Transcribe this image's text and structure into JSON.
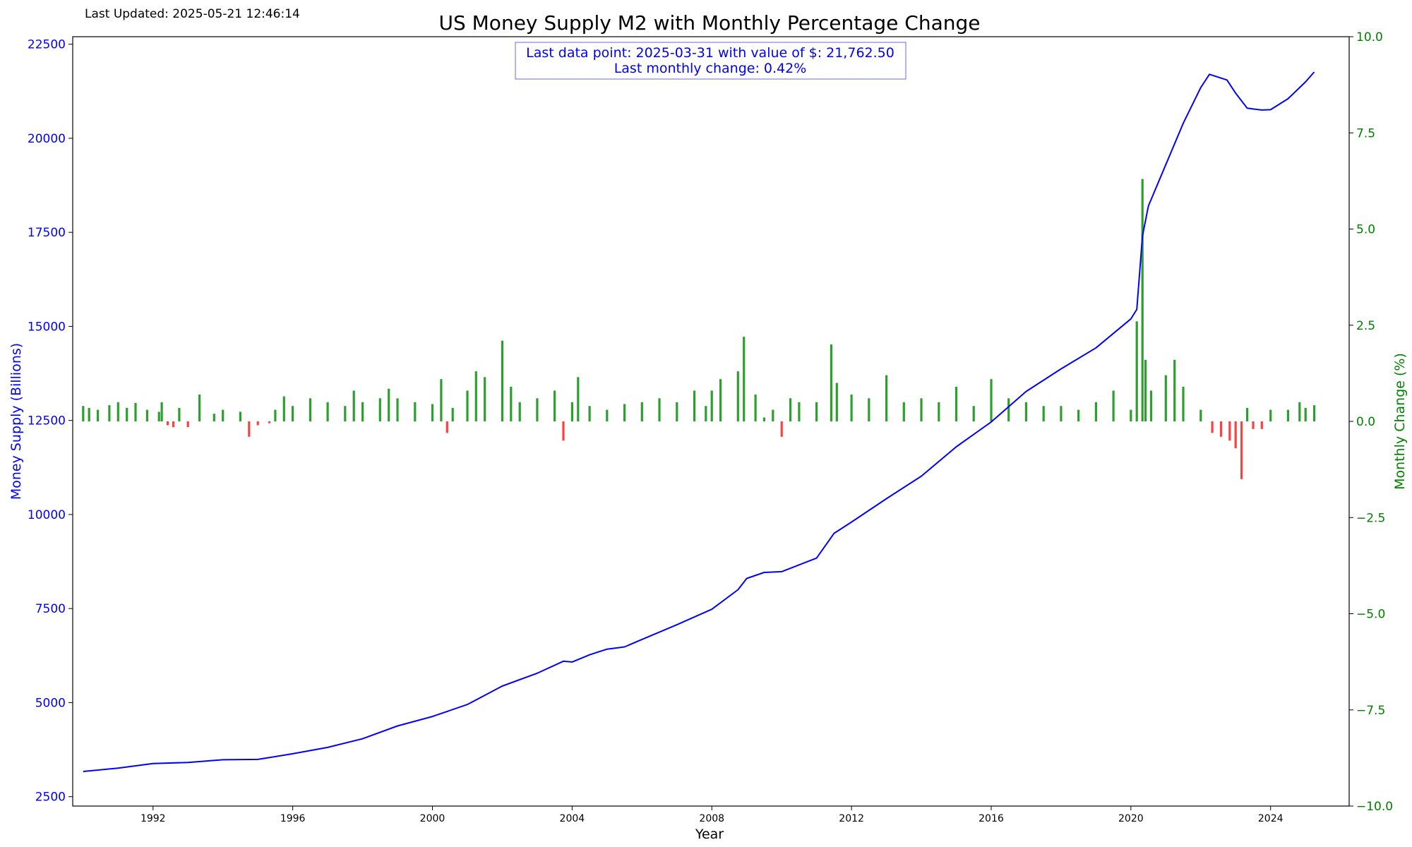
{
  "header": {
    "last_updated": "Last Updated: 2025-05-21 12:46:14"
  },
  "chart_data": {
    "type": "line",
    "title": "US Money Supply M2 with Monthly Percentage Change",
    "xlabel": "Year",
    "ylabel": "Money Supply (Billions)",
    "y2label": "Monthly Change (%)",
    "xlim": [
      1989.7,
      2026.25
    ],
    "ylim": [
      2250,
      22700
    ],
    "y2lim": [
      -10,
      10
    ],
    "xticks": [
      "1992",
      "1996",
      "2000",
      "2004",
      "2008",
      "2012",
      "2016",
      "2020",
      "2024"
    ],
    "yticks": [
      "2500",
      "5000",
      "7500",
      "10000",
      "12500",
      "15000",
      "17500",
      "20000",
      "22500"
    ],
    "y2ticks": [
      "−10.0",
      "−7.5",
      "−5.0",
      "−2.5",
      "0.0",
      "2.5",
      "5.0",
      "7.5",
      "10.0"
    ],
    "grid": false,
    "annotation": {
      "line1": "Last data point: 2025-03-31 with value of $: 21,762.50",
      "line2": "Last monthly change: 0.42%"
    },
    "colors": {
      "line": "#0000ff",
      "positive_bar": "#2ca02c",
      "negative_bar": "#ff4040",
      "right_axis": "#008000",
      "left_axis": "#0000ff"
    },
    "series": [
      {
        "name": "M2",
        "points": [
          [
            1990.0,
            3170
          ],
          [
            1991.0,
            3260
          ],
          [
            1992.0,
            3380
          ],
          [
            1993.0,
            3410
          ],
          [
            1994.0,
            3480
          ],
          [
            1995.0,
            3490
          ],
          [
            1996.0,
            3640
          ],
          [
            1997.0,
            3810
          ],
          [
            1998.0,
            4040
          ],
          [
            1999.0,
            4380
          ],
          [
            2000.0,
            4630
          ],
          [
            2001.0,
            4950
          ],
          [
            2002.0,
            5440
          ],
          [
            2003.0,
            5780
          ],
          [
            2003.75,
            6100
          ],
          [
            2004.0,
            6080
          ],
          [
            2004.5,
            6270
          ],
          [
            2005.0,
            6420
          ],
          [
            2005.5,
            6480
          ],
          [
            2006.0,
            6680
          ],
          [
            2007.0,
            7070
          ],
          [
            2008.0,
            7480
          ],
          [
            2008.75,
            8000
          ],
          [
            2009.0,
            8300
          ],
          [
            2009.5,
            8460
          ],
          [
            2010.0,
            8480
          ],
          [
            2011.0,
            8840
          ],
          [
            2011.5,
            9500
          ],
          [
            2012.0,
            9800
          ],
          [
            2013.0,
            10420
          ],
          [
            2014.0,
            11020
          ],
          [
            2015.0,
            11800
          ],
          [
            2016.0,
            12460
          ],
          [
            2017.0,
            13270
          ],
          [
            2018.0,
            13870
          ],
          [
            2019.0,
            14430
          ],
          [
            2020.0,
            15200
          ],
          [
            2020.17,
            15450
          ],
          [
            2020.33,
            17400
          ],
          [
            2020.5,
            18200
          ],
          [
            2021.0,
            19300
          ],
          [
            2021.5,
            20400
          ],
          [
            2022.0,
            21350
          ],
          [
            2022.25,
            21700
          ],
          [
            2022.75,
            21550
          ],
          [
            2023.0,
            21200
          ],
          [
            2023.33,
            20800
          ],
          [
            2023.75,
            20750
          ],
          [
            2024.0,
            20760
          ],
          [
            2024.5,
            21050
          ],
          [
            2025.0,
            21500
          ],
          [
            2025.25,
            21762.5
          ]
        ]
      },
      {
        "name": "Monthly Change",
        "axis": "right",
        "points": [
          [
            1990.0,
            0.4
          ],
          [
            1990.17,
            0.35
          ],
          [
            1990.42,
            0.3
          ],
          [
            1990.75,
            0.42
          ],
          [
            1991.0,
            0.5
          ],
          [
            1991.25,
            0.35
          ],
          [
            1991.5,
            0.48
          ],
          [
            1991.83,
            0.3
          ],
          [
            1992.17,
            0.25
          ],
          [
            1992.25,
            0.5
          ],
          [
            1992.42,
            -0.1
          ],
          [
            1992.58,
            -0.15
          ],
          [
            1992.75,
            0.35
          ],
          [
            1993.0,
            -0.15
          ],
          [
            1993.33,
            0.7
          ],
          [
            1993.75,
            0.2
          ],
          [
            1994.0,
            0.3
          ],
          [
            1994.5,
            0.25
          ],
          [
            1994.75,
            -0.4
          ],
          [
            1995.0,
            -0.1
          ],
          [
            1995.33,
            -0.05
          ],
          [
            1995.5,
            0.3
          ],
          [
            1995.75,
            0.65
          ],
          [
            1996.0,
            0.4
          ],
          [
            1996.5,
            0.6
          ],
          [
            1997.0,
            0.5
          ],
          [
            1997.5,
            0.4
          ],
          [
            1997.75,
            0.8
          ],
          [
            1998.0,
            0.5
          ],
          [
            1998.5,
            0.6
          ],
          [
            1998.75,
            0.85
          ],
          [
            1999.0,
            0.6
          ],
          [
            1999.5,
            0.5
          ],
          [
            2000.0,
            0.45
          ],
          [
            2000.25,
            1.1
          ],
          [
            2000.42,
            -0.3
          ],
          [
            2000.58,
            0.35
          ],
          [
            2001.0,
            0.8
          ],
          [
            2001.25,
            1.3
          ],
          [
            2001.5,
            1.15
          ],
          [
            2002.0,
            2.1
          ],
          [
            2002.25,
            0.9
          ],
          [
            2002.5,
            0.5
          ],
          [
            2003.0,
            0.6
          ],
          [
            2003.5,
            0.8
          ],
          [
            2003.75,
            -0.5
          ],
          [
            2004.0,
            0.5
          ],
          [
            2004.17,
            1.15
          ],
          [
            2004.5,
            0.4
          ],
          [
            2005.0,
            0.3
          ],
          [
            2005.5,
            0.45
          ],
          [
            2006.0,
            0.5
          ],
          [
            2006.5,
            0.6
          ],
          [
            2007.0,
            0.5
          ],
          [
            2007.5,
            0.8
          ],
          [
            2007.83,
            0.4
          ],
          [
            2008.0,
            0.8
          ],
          [
            2008.25,
            1.1
          ],
          [
            2008.75,
            1.3
          ],
          [
            2008.92,
            2.2
          ],
          [
            2009.25,
            0.7
          ],
          [
            2009.5,
            0.1
          ],
          [
            2009.75,
            0.3
          ],
          [
            2010.0,
            -0.4
          ],
          [
            2010.25,
            0.6
          ],
          [
            2010.5,
            0.5
          ],
          [
            2011.0,
            0.5
          ],
          [
            2011.42,
            2.0
          ],
          [
            2011.58,
            1.0
          ],
          [
            2012.0,
            0.7
          ],
          [
            2012.5,
            0.6
          ],
          [
            2013.0,
            1.2
          ],
          [
            2013.5,
            0.5
          ],
          [
            2014.0,
            0.6
          ],
          [
            2014.5,
            0.5
          ],
          [
            2015.0,
            0.9
          ],
          [
            2015.5,
            0.4
          ],
          [
            2016.0,
            1.1
          ],
          [
            2016.5,
            0.6
          ],
          [
            2017.0,
            0.5
          ],
          [
            2017.5,
            0.4
          ],
          [
            2018.0,
            0.4
          ],
          [
            2018.5,
            0.3
          ],
          [
            2019.0,
            0.5
          ],
          [
            2019.5,
            0.8
          ],
          [
            2020.0,
            0.3
          ],
          [
            2020.17,
            2.6
          ],
          [
            2020.33,
            6.3
          ],
          [
            2020.42,
            1.6
          ],
          [
            2020.58,
            0.8
          ],
          [
            2021.0,
            1.2
          ],
          [
            2021.25,
            1.6
          ],
          [
            2021.5,
            0.9
          ],
          [
            2022.0,
            0.3
          ],
          [
            2022.33,
            -0.3
          ],
          [
            2022.58,
            -0.4
          ],
          [
            2022.83,
            -0.5
          ],
          [
            2023.0,
            -0.7
          ],
          [
            2023.17,
            -1.5
          ],
          [
            2023.33,
            0.35
          ],
          [
            2023.5,
            -0.2
          ],
          [
            2023.75,
            -0.2
          ],
          [
            2024.0,
            0.3
          ],
          [
            2024.5,
            0.3
          ],
          [
            2024.83,
            0.5
          ],
          [
            2025.0,
            0.35
          ],
          [
            2025.25,
            0.42
          ]
        ]
      }
    ]
  }
}
